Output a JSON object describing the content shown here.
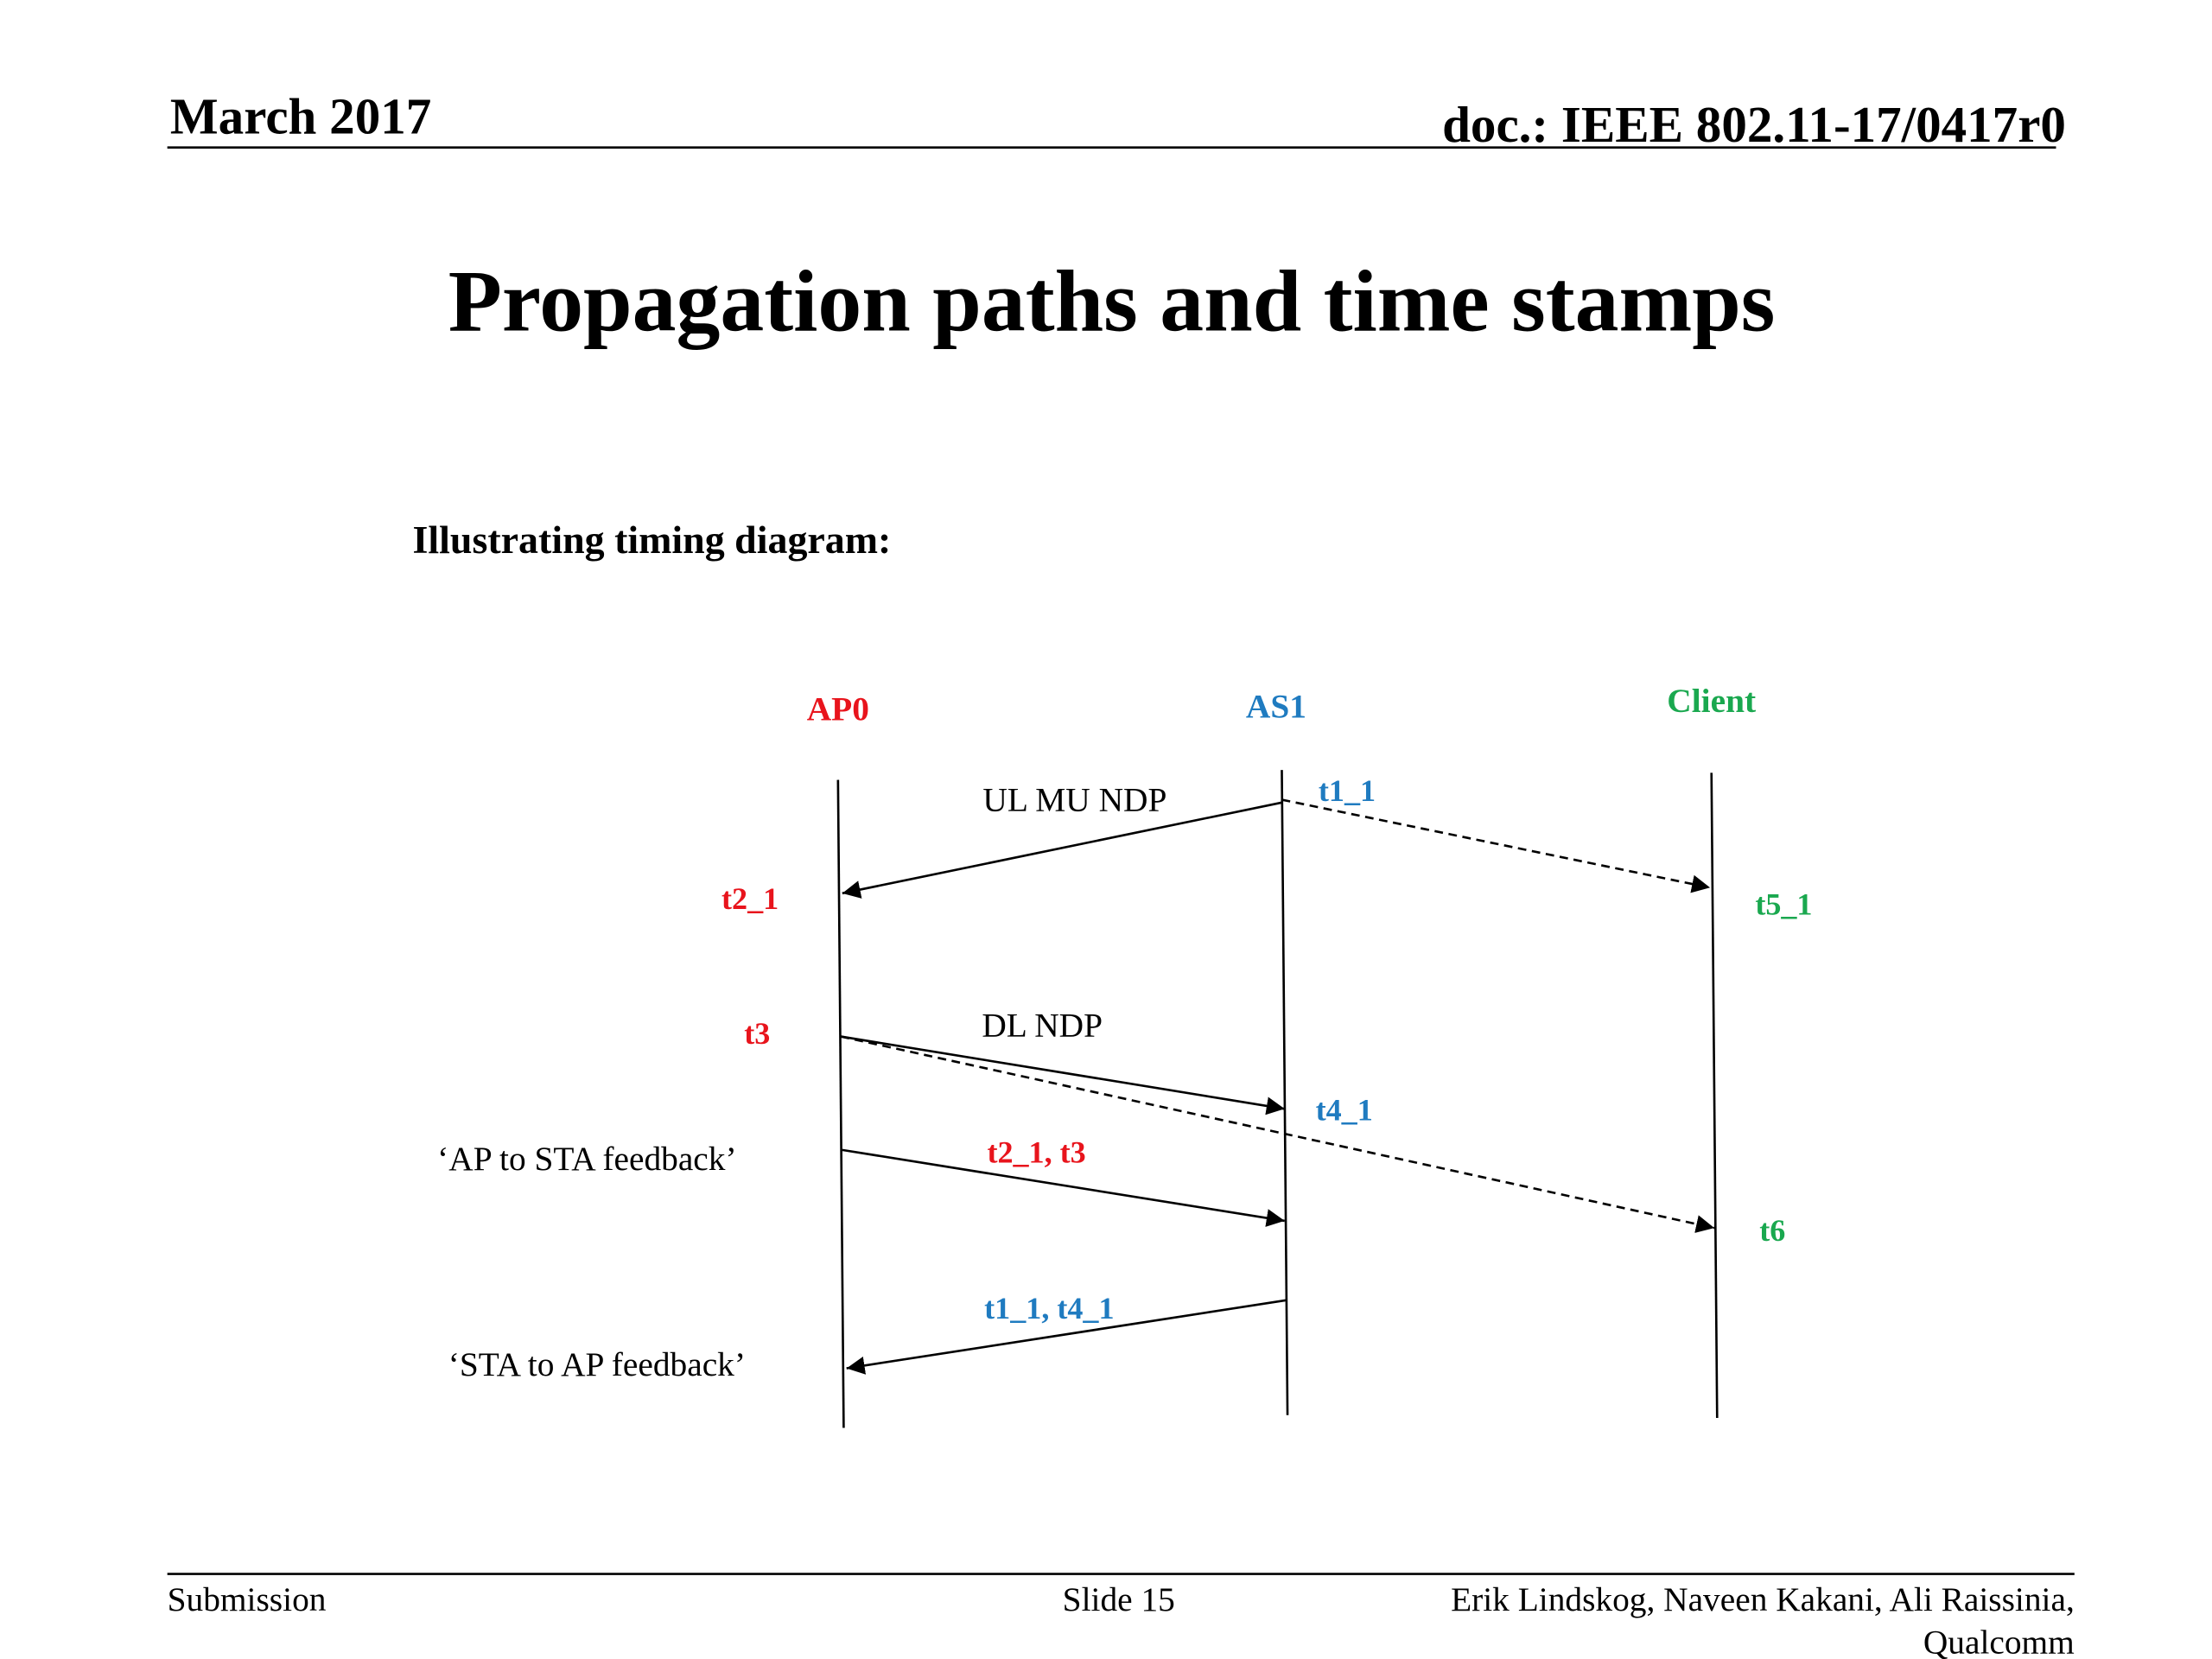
{
  "header": {
    "date": "March 2017",
    "doc": "doc.: IEEE 802.11-17/0417r0"
  },
  "title": "Propagation paths and time stamps",
  "subtitle": "Illustrating timing diagram:",
  "diagram": {
    "nodes": [
      {
        "label": "AP0"
      },
      {
        "label": "AS1"
      },
      {
        "label": "Client"
      }
    ],
    "messages": [
      {
        "label": "UL MU NDP"
      },
      {
        "label": "DL NDP"
      },
      {
        "label": "t2_1, t3"
      },
      {
        "label": "t1_1, t4_1"
      }
    ],
    "timestamps": [
      {
        "label": "t1_1"
      },
      {
        "label": "t2_1"
      },
      {
        "label": "t5_1"
      },
      {
        "label": "t3"
      },
      {
        "label": "t4_1"
      },
      {
        "label": "t6"
      }
    ],
    "notes": [
      {
        "label": "‘AP to STA feedback’"
      },
      {
        "label": "‘STA to AP feedback’"
      }
    ]
  },
  "footer": {
    "left": "Submission",
    "center": "Slide 15",
    "right": [
      "Erik Lindskog, Naveen Kakani, Ali Raissinia,",
      "Qualcomm"
    ]
  }
}
